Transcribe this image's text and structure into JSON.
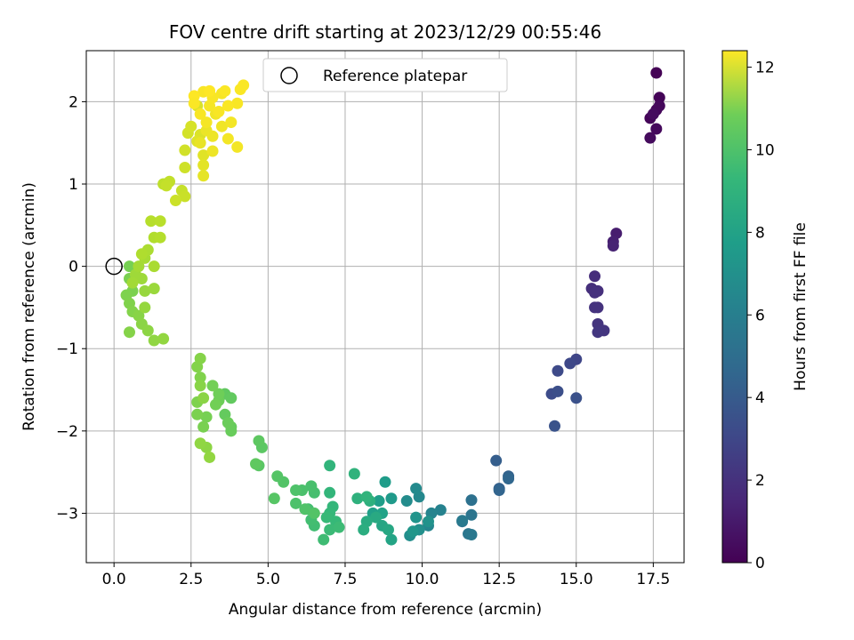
{
  "chart_data": {
    "type": "scatter",
    "title": "FOV centre drift starting at 2023/12/29 00:55:46",
    "xlabel": "Angular distance from reference (arcmin)",
    "ylabel": "Rotation from reference (arcmin)",
    "xlim": [
      -0.9,
      18.5
    ],
    "ylim": [
      -3.6,
      2.62
    ],
    "xticks": [
      0.0,
      2.5,
      5.0,
      7.5,
      10.0,
      12.5,
      15.0,
      17.5
    ],
    "xtick_labels": [
      "0.0",
      "2.5",
      "5.0",
      "7.5",
      "10.0",
      "12.5",
      "15.0",
      "17.5"
    ],
    "yticks": [
      -3,
      -2,
      -1,
      0,
      1,
      2
    ],
    "ytick_labels": [
      "−3",
      "−2",
      "−1",
      "0",
      "1",
      "2"
    ],
    "grid": true,
    "legend": {
      "position": "top-center",
      "entries": [
        "Reference platepar"
      ]
    },
    "reference_point": {
      "x": 0.0,
      "y": 0.0
    },
    "colorbar": {
      "label": "Hours from first FF file",
      "range": [
        0,
        12.4
      ],
      "ticks": [
        0,
        2,
        4,
        6,
        8,
        10,
        12
      ],
      "tick_labels": [
        "0",
        "2",
        "4",
        "6",
        "8",
        "10",
        "12"
      ],
      "colormap": "viridis"
    },
    "points": [
      [
        17.6,
        2.35,
        0.05
      ],
      [
        17.7,
        2.05,
        0.1
      ],
      [
        17.4,
        1.8,
        0.15
      ],
      [
        17.6,
        1.9,
        0.2
      ],
      [
        17.7,
        1.95,
        0.25
      ],
      [
        17.6,
        1.67,
        0.3
      ],
      [
        17.4,
        1.56,
        0.35
      ],
      [
        17.5,
        1.85,
        0.4
      ],
      [
        16.3,
        0.4,
        1.0
      ],
      [
        16.2,
        0.3,
        1.1
      ],
      [
        16.2,
        0.25,
        1.2
      ],
      [
        15.6,
        -0.12,
        1.6
      ],
      [
        15.5,
        -0.27,
        1.65
      ],
      [
        15.7,
        -0.3,
        1.7
      ],
      [
        15.6,
        -0.32,
        1.75
      ],
      [
        15.7,
        -0.5,
        1.8
      ],
      [
        15.6,
        -0.5,
        1.85
      ],
      [
        15.7,
        -0.7,
        1.9
      ],
      [
        15.9,
        -0.78,
        1.95
      ],
      [
        15.7,
        -0.8,
        2.0
      ],
      [
        15.0,
        -1.13,
        2.6
      ],
      [
        14.8,
        -1.18,
        2.7
      ],
      [
        14.4,
        -1.27,
        2.8
      ],
      [
        14.2,
        -1.55,
        2.9
      ],
      [
        14.4,
        -1.52,
        3.0
      ],
      [
        15.0,
        -1.6,
        3.1
      ],
      [
        14.3,
        -1.94,
        3.2
      ],
      [
        12.4,
        -2.36,
        3.7
      ],
      [
        12.5,
        -2.7,
        3.8
      ],
      [
        12.8,
        -2.55,
        3.9
      ],
      [
        12.5,
        -2.72,
        4.0
      ],
      [
        12.8,
        -2.58,
        4.1
      ],
      [
        11.6,
        -2.84,
        4.6
      ],
      [
        11.3,
        -3.1,
        4.7
      ],
      [
        11.6,
        -3.02,
        4.8
      ],
      [
        11.5,
        -3.25,
        4.9
      ],
      [
        11.6,
        -3.26,
        5.0
      ],
      [
        11.3,
        -3.09,
        5.1
      ],
      [
        10.6,
        -2.96,
        5.5
      ],
      [
        10.3,
        -3.0,
        5.6
      ],
      [
        10.2,
        -3.15,
        5.7
      ],
      [
        9.9,
        -2.8,
        5.8
      ],
      [
        9.8,
        -2.7,
        5.9
      ],
      [
        9.5,
        -2.85,
        6.0
      ],
      [
        9.6,
        -3.27,
        6.1
      ],
      [
        9.9,
        -3.2,
        6.2
      ],
      [
        10.2,
        -3.1,
        6.3
      ],
      [
        9.8,
        -3.05,
        6.4
      ],
      [
        9.7,
        -3.22,
        6.5
      ],
      [
        9.0,
        -2.82,
        6.7
      ],
      [
        8.8,
        -2.62,
        6.8
      ],
      [
        8.6,
        -2.85,
        6.9
      ],
      [
        8.4,
        -3.0,
        7.0
      ],
      [
        8.7,
        -3.0,
        7.1
      ],
      [
        9.0,
        -3.32,
        7.2
      ],
      [
        8.7,
        -3.15,
        7.3
      ],
      [
        8.9,
        -3.2,
        7.4
      ],
      [
        8.5,
        -3.05,
        7.5
      ],
      [
        8.2,
        -3.1,
        7.6
      ],
      [
        8.1,
        -3.2,
        7.7
      ],
      [
        8.3,
        -2.85,
        7.8
      ],
      [
        7.9,
        -2.82,
        7.9
      ],
      [
        7.8,
        -2.52,
        8.0
      ],
      [
        8.2,
        -2.8,
        8.05
      ],
      [
        7.0,
        -2.42,
        8.1
      ],
      [
        7.0,
        -2.75,
        8.15
      ],
      [
        7.1,
        -2.92,
        8.2
      ],
      [
        7.0,
        -3.0,
        8.25
      ],
      [
        7.2,
        -3.1,
        8.3
      ],
      [
        6.9,
        -3.05,
        8.35
      ],
      [
        7.0,
        -3.2,
        8.4
      ],
      [
        7.3,
        -3.17,
        8.45
      ],
      [
        6.8,
        -3.32,
        8.5
      ],
      [
        6.5,
        -3.15,
        8.55
      ],
      [
        6.4,
        -3.08,
        8.6
      ],
      [
        6.3,
        -2.95,
        8.65
      ],
      [
        6.5,
        -2.75,
        8.7
      ],
      [
        6.4,
        -2.67,
        8.75
      ],
      [
        6.1,
        -2.72,
        8.8
      ],
      [
        5.9,
        -2.88,
        8.85
      ],
      [
        5.9,
        -2.72,
        8.9
      ],
      [
        6.2,
        -2.95,
        8.95
      ],
      [
        6.5,
        -3.0,
        9.0
      ],
      [
        5.5,
        -2.62,
        9.0
      ],
      [
        5.3,
        -2.55,
        9.05
      ],
      [
        5.2,
        -2.82,
        9.1
      ],
      [
        4.7,
        -2.42,
        9.15
      ],
      [
        4.8,
        -2.2,
        9.2
      ],
      [
        4.7,
        -2.12,
        9.25
      ],
      [
        4.6,
        -2.4,
        9.3
      ],
      [
        3.6,
        -1.55,
        9.3
      ],
      [
        3.8,
        -1.6,
        9.35
      ],
      [
        3.6,
        -1.8,
        9.4
      ],
      [
        3.8,
        -1.95,
        9.45
      ],
      [
        3.8,
        -2.0,
        9.5
      ],
      [
        3.7,
        -1.9,
        9.55
      ],
      [
        3.4,
        -1.63,
        9.6
      ],
      [
        3.4,
        -1.55,
        9.65
      ],
      [
        3.3,
        -1.68,
        9.7
      ],
      [
        3.2,
        -1.45,
        9.75
      ],
      [
        3.0,
        -1.83,
        9.8
      ],
      [
        2.9,
        -1.95,
        9.85
      ],
      [
        2.7,
        -1.8,
        9.9
      ],
      [
        2.7,
        -1.65,
        9.95
      ],
      [
        2.8,
        -1.35,
        10.0
      ],
      [
        2.7,
        -1.22,
        10.05
      ],
      [
        2.8,
        -1.12,
        10.1
      ],
      [
        2.8,
        -1.45,
        10.15
      ],
      [
        2.9,
        -1.6,
        10.2
      ],
      [
        3.0,
        -2.2,
        10.25
      ],
      [
        2.8,
        -2.15,
        10.3
      ],
      [
        3.1,
        -2.32,
        10.35
      ],
      [
        0.5,
        0.0,
        9.8
      ],
      [
        0.5,
        -0.15,
        9.85
      ],
      [
        0.6,
        -0.3,
        9.9
      ],
      [
        0.4,
        -0.35,
        9.95
      ],
      [
        0.5,
        -0.45,
        10.0
      ],
      [
        0.6,
        -0.55,
        10.05
      ],
      [
        0.5,
        -0.8,
        10.1
      ],
      [
        0.8,
        -0.6,
        10.15
      ],
      [
        0.9,
        -0.7,
        10.2
      ],
      [
        1.1,
        -0.78,
        10.25
      ],
      [
        1.3,
        -0.9,
        10.3
      ],
      [
        1.6,
        -0.88,
        10.35
      ],
      [
        1.0,
        -0.5,
        10.4
      ],
      [
        1.0,
        -0.3,
        10.45
      ],
      [
        1.3,
        -0.27,
        10.5
      ],
      [
        0.9,
        -0.15,
        10.55
      ],
      [
        0.7,
        -0.1,
        10.6
      ],
      [
        0.6,
        -0.2,
        10.65
      ],
      [
        0.8,
        0.0,
        10.7
      ],
      [
        1.0,
        0.1,
        10.75
      ],
      [
        1.3,
        0.0,
        10.8
      ],
      [
        1.1,
        0.2,
        10.85
      ],
      [
        0.9,
        0.15,
        10.9
      ],
      [
        1.3,
        0.35,
        10.95
      ],
      [
        1.5,
        0.35,
        11.0
      ],
      [
        1.2,
        0.55,
        11.05
      ],
      [
        1.5,
        0.55,
        11.1
      ],
      [
        1.6,
        1.0,
        11.2
      ],
      [
        1.8,
        1.03,
        11.25
      ],
      [
        1.7,
        0.98,
        11.3
      ],
      [
        2.2,
        0.92,
        11.35
      ],
      [
        2.3,
        0.85,
        11.4
      ],
      [
        2.0,
        0.8,
        11.45
      ],
      [
        2.3,
        1.2,
        11.5
      ],
      [
        2.3,
        1.41,
        11.55
      ],
      [
        2.4,
        1.62,
        11.6
      ],
      [
        2.5,
        1.7,
        11.65
      ],
      [
        2.7,
        1.95,
        11.7
      ],
      [
        2.8,
        1.6,
        11.75
      ],
      [
        2.7,
        1.52,
        11.8
      ],
      [
        2.9,
        1.35,
        11.85
      ],
      [
        2.9,
        1.23,
        11.9
      ],
      [
        2.9,
        1.1,
        11.95
      ],
      [
        2.8,
        1.5,
        12.0
      ],
      [
        3.0,
        1.65,
        12.05
      ],
      [
        3.2,
        1.58,
        12.1
      ],
      [
        3.2,
        1.4,
        12.1
      ],
      [
        3.3,
        1.85,
        12.15
      ],
      [
        3.5,
        1.7,
        12.15
      ],
      [
        3.7,
        1.55,
        12.2
      ],
      [
        3.8,
        1.75,
        12.2
      ],
      [
        4.0,
        1.45,
        12.2
      ],
      [
        3.5,
        2.1,
        12.25
      ],
      [
        3.1,
        1.95,
        12.25
      ],
      [
        2.9,
        2.12,
        12.3
      ],
      [
        3.2,
        2.05,
        12.3
      ],
      [
        4.0,
        1.98,
        12.3
      ],
      [
        4.1,
        2.15,
        12.35
      ],
      [
        4.2,
        2.2,
        12.35
      ],
      [
        3.6,
        2.13,
        12.35
      ],
      [
        3.1,
        2.13,
        12.4
      ],
      [
        2.6,
        2.07,
        12.4
      ],
      [
        2.6,
        1.98,
        12.35
      ],
      [
        2.8,
        1.85,
        12.3
      ],
      [
        3.0,
        1.75,
        12.25
      ],
      [
        3.4,
        1.88,
        12.3
      ],
      [
        3.7,
        1.95,
        12.35
      ]
    ]
  }
}
